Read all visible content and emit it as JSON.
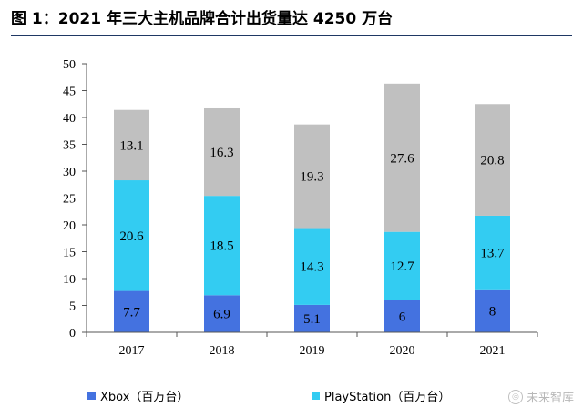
{
  "figure": {
    "title": "图 1：2021 年三大主机品牌合计出货量达 4250 万台"
  },
  "watermark": {
    "icon_name": "circle-logo-icon",
    "text": "未来智库"
  },
  "chart_data": {
    "type": "bar",
    "stacked": true,
    "title": "",
    "xlabel": "",
    "ylabel": "",
    "categories": [
      "2017",
      "2018",
      "2019",
      "2020",
      "2021"
    ],
    "ylim": [
      0,
      50
    ],
    "yticks": [
      0,
      5,
      10,
      15,
      20,
      25,
      30,
      35,
      40,
      45,
      50
    ],
    "grid": false,
    "legend_position": "bottom",
    "series": [
      {
        "name": "Xbox（百万台）",
        "color": "#4472e0",
        "values": [
          7.7,
          6.9,
          5.1,
          6,
          8
        ],
        "labels": [
          "7.7",
          "6.9",
          "5.1",
          "6",
          "8"
        ]
      },
      {
        "name": "PlayStation（百万台）",
        "color": "#33ccf2",
        "values": [
          20.6,
          18.5,
          14.3,
          12.7,
          13.7
        ],
        "labels": [
          "20.6",
          "18.5",
          "14.3",
          "12.7",
          "13.7"
        ]
      },
      {
        "name": "",
        "color": "#c0c0c0",
        "values": [
          13.1,
          16.3,
          19.3,
          27.6,
          20.8
        ],
        "labels": [
          "13.1",
          "16.3",
          "19.3",
          "27.6",
          "20.8"
        ]
      }
    ]
  }
}
